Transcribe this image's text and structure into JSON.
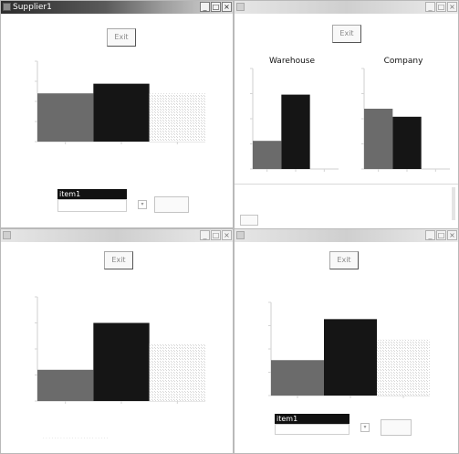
{
  "windows": {
    "supplier": {
      "title": "Supplier1",
      "exit_label": "Exit",
      "select_label": "item1"
    },
    "warehouse_company": {
      "title": "",
      "exit_label": "Exit"
    },
    "bottom_left": {
      "title": "",
      "exit_label": "Exit"
    },
    "bottom_right": {
      "title": "",
      "exit_label": "Exit",
      "select_label": "item1"
    }
  },
  "window_buttons": {
    "minimize": "_",
    "maximize": "□",
    "close": "×"
  },
  "colors": {
    "series_a": "#6b6b6b",
    "series_b": "#151515",
    "hatch": "#d6d6d6"
  },
  "chart_data": [
    {
      "type": "bar",
      "window": "Supplier1",
      "title": "",
      "categories": [
        "",
        "",
        ""
      ],
      "values": [
        60,
        72,
        60
      ],
      "ylim": [
        0,
        100
      ],
      "grid": false
    },
    {
      "type": "bar",
      "window": "Warehouse/Company",
      "title": "Warehouse",
      "categories": [
        "",
        "",
        ""
      ],
      "values": [
        28,
        74,
        0
      ],
      "ylim": [
        0,
        100
      ],
      "grid": false
    },
    {
      "type": "bar",
      "window": "Warehouse/Company",
      "title": "Company",
      "categories": [
        "",
        "",
        ""
      ],
      "values": [
        60,
        52,
        0
      ],
      "ylim": [
        0,
        100
      ],
      "grid": false
    },
    {
      "type": "bar",
      "window": "bottom-left",
      "title": "",
      "categories": [
        "",
        "",
        ""
      ],
      "values": [
        30,
        75,
        55
      ],
      "ylim": [
        0,
        100
      ],
      "grid": false
    },
    {
      "type": "bar",
      "window": "bottom-right",
      "title": "",
      "categories": [
        "",
        "",
        ""
      ],
      "values": [
        38,
        82,
        60
      ],
      "ylim": [
        0,
        100
      ],
      "grid": false
    }
  ]
}
